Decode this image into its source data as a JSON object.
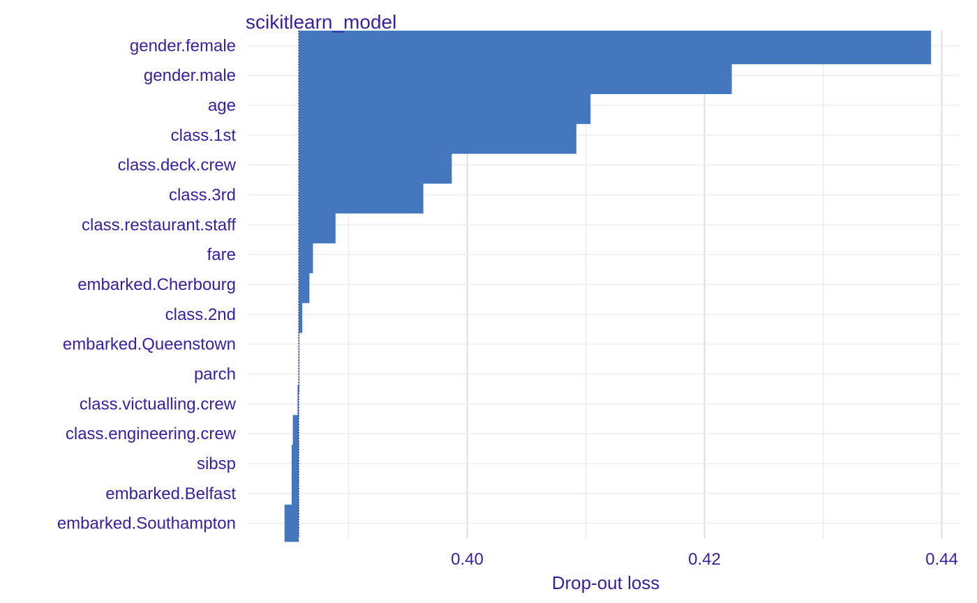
{
  "chart_data": {
    "type": "bar",
    "orientation": "horizontal",
    "title": "scikitlearn_model",
    "xlabel": "Drop-out loss",
    "ylabel": "",
    "baseline": 0.3858,
    "xlim": [
      0.3815,
      0.4415
    ],
    "xticks": [
      0.4,
      0.42,
      0.44
    ],
    "xtick_labels": [
      "0.40",
      "0.42",
      "0.44"
    ],
    "grid": true,
    "bar_color": "#4378bf",
    "categories": [
      "gender.female",
      "gender.male",
      "age",
      "class.1st",
      "class.deck.crew",
      "class.3rd",
      "class.restaurant.staff",
      "fare",
      "embarked.Cherbourg",
      "class.2nd",
      "embarked.Queenstown",
      "parch",
      "class.victualling.crew",
      "class.engineering.crew",
      "sibsp",
      "embarked.Belfast",
      "embarked.Southampton"
    ],
    "values": [
      0.4391,
      0.4223,
      0.4104,
      0.4092,
      0.3987,
      0.3963,
      0.3889,
      0.387,
      0.3867,
      0.3861,
      0.3858,
      0.3858,
      0.3857,
      0.3853,
      0.3852,
      0.3852,
      0.3846
    ]
  }
}
